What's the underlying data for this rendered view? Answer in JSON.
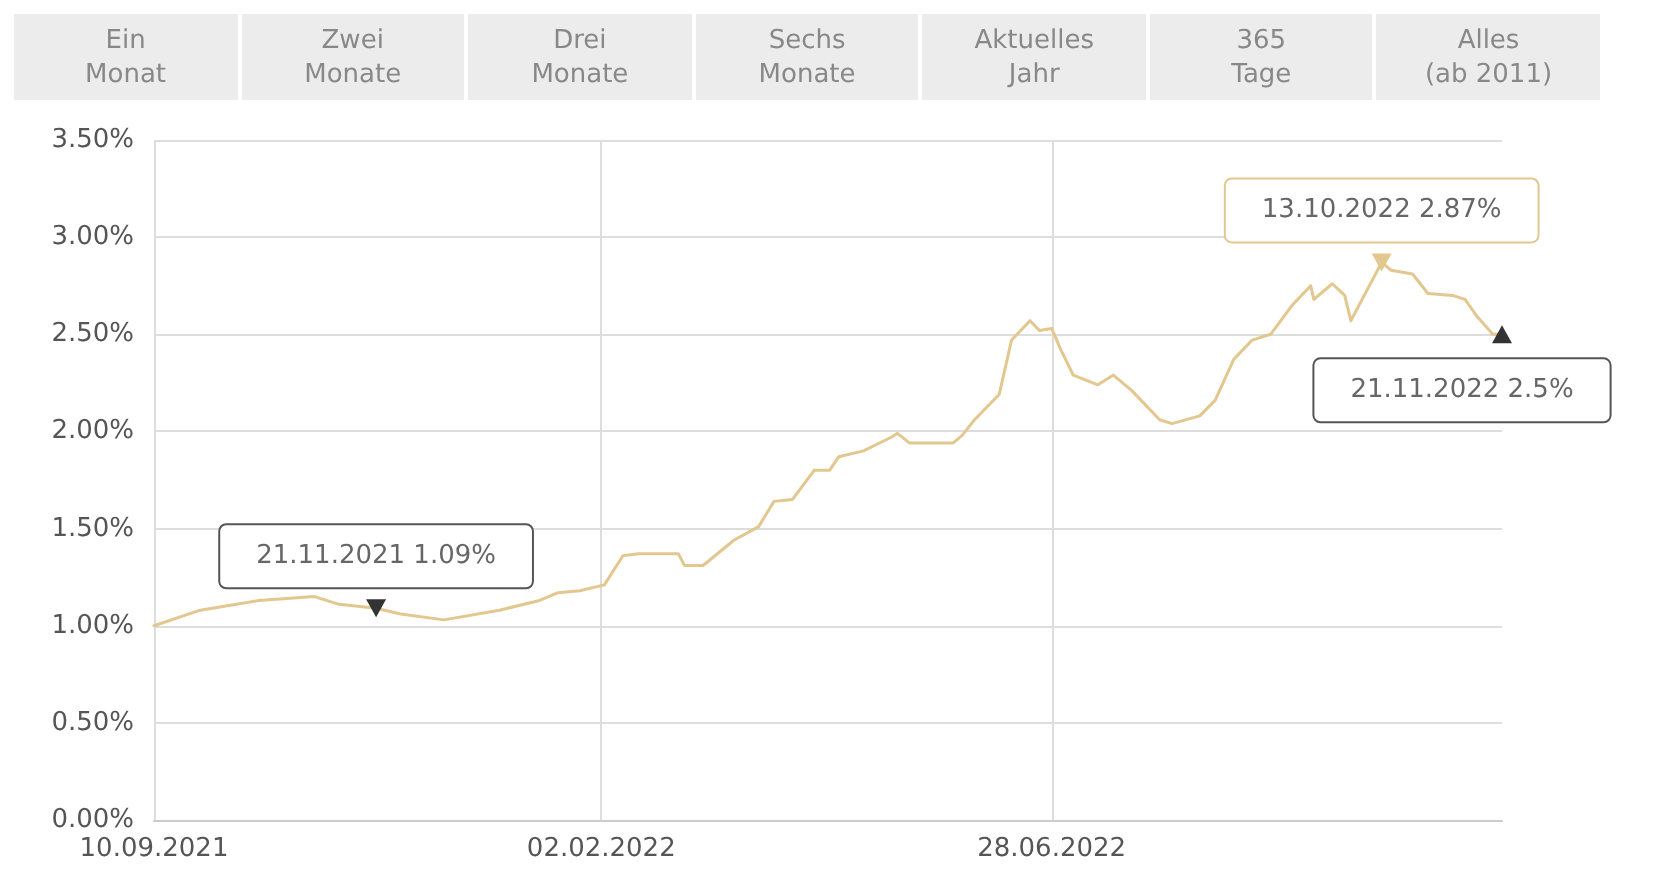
{
  "chart_data": {
    "type": "line",
    "x": [
      "2021-09-10",
      "2021-09-25",
      "2021-10-14",
      "2021-11-01",
      "2021-11-09",
      "2021-11-21",
      "2021-11-29",
      "2021-12-13",
      "2021-12-31",
      "2022-01-13",
      "2022-01-19",
      "2022-01-26",
      "2022-02-03",
      "2022-02-09",
      "2022-02-14",
      "2022-02-27",
      "2022-03-01",
      "2022-03-07",
      "2022-03-17",
      "2022-03-25",
      "2022-03-30",
      "2022-04-05",
      "2022-04-12",
      "2022-04-17",
      "2022-04-20",
      "2022-04-28",
      "2022-05-07",
      "2022-05-09",
      "2022-05-13",
      "2022-05-27",
      "2022-05-30",
      "2022-06-03",
      "2022-06-11",
      "2022-06-15",
      "2022-06-21",
      "2022-06-24",
      "2022-06-28",
      "2022-07-01",
      "2022-07-05",
      "2022-07-13",
      "2022-07-18",
      "2022-07-24",
      "2022-08-02",
      "2022-08-06",
      "2022-08-15",
      "2022-08-20",
      "2022-08-26",
      "2022-09-01",
      "2022-09-07",
      "2022-09-14",
      "2022-09-20",
      "2022-09-21",
      "2022-09-27",
      "2022-10-01",
      "2022-10-03",
      "2022-10-13",
      "2022-10-16",
      "2022-10-23",
      "2022-10-28",
      "2022-11-05",
      "2022-11-09",
      "2022-11-13",
      "2022-11-18",
      "2022-11-21"
    ],
    "series": [
      {
        "color": "#e2c78e",
        "values": [
          1.0,
          1.08,
          1.13,
          1.15,
          1.11,
          1.09,
          1.06,
          1.03,
          1.08,
          1.13,
          1.17,
          1.18,
          1.21,
          1.36,
          1.37,
          1.37,
          1.31,
          1.31,
          1.44,
          1.51,
          1.64,
          1.65,
          1.8,
          1.8,
          1.87,
          1.9,
          1.97,
          1.99,
          1.94,
          1.94,
          1.98,
          2.06,
          2.19,
          2.47,
          2.57,
          2.52,
          2.53,
          2.42,
          2.29,
          2.24,
          2.29,
          2.21,
          2.06,
          2.04,
          2.08,
          2.16,
          2.37,
          2.47,
          2.5,
          2.65,
          2.75,
          2.68,
          2.76,
          2.7,
          2.57,
          2.87,
          2.83,
          2.81,
          2.71,
          2.7,
          2.68,
          2.59,
          2.5,
          2.5
        ]
      }
    ],
    "xlim": [
      "2021-09-10",
      "2022-11-21"
    ],
    "xticks": [
      {
        "value": "2021-09-10",
        "label": "10.09.2021"
      },
      {
        "value": "2022-02-02",
        "label": "02.02.2022"
      },
      {
        "value": "2022-06-28",
        "label": "28.06.2022"
      }
    ],
    "ylim": [
      0,
      3.5
    ],
    "yticks": [
      {
        "value": 0,
        "label": "0.00%"
      },
      {
        "value": 0.5,
        "label": "0.50%"
      },
      {
        "value": 1,
        "label": "1.00%"
      },
      {
        "value": 1.5,
        "label": "1.50%"
      },
      {
        "value": 2,
        "label": "2.00%"
      },
      {
        "value": 2.5,
        "label": "2.50%"
      },
      {
        "value": 3,
        "label": "3.00%"
      },
      {
        "value": 3.5,
        "label": "3.50%"
      }
    ],
    "grid": true,
    "marker": "none",
    "line_style": "solid",
    "annotations": [
      "Ein\nMonat",
      "Zwei\nMonate",
      "Drei\nMonate",
      "Sechs\nMonate",
      "Aktuelles\nJahr",
      "365\nTage",
      "Alles\n(ab 2011)",
      {
        "text": "21.11.2021 1.09%",
        "x": "2021-11-21",
        "y": 1.09
      },
      {
        "text": "13.10.2022 2.87%",
        "x": "2022-10-13",
        "y": 2.87
      },
      {
        "text": "21.11.2022 2.5%",
        "x": "2022-11-21",
        "y": 2.5
      }
    ]
  }
}
